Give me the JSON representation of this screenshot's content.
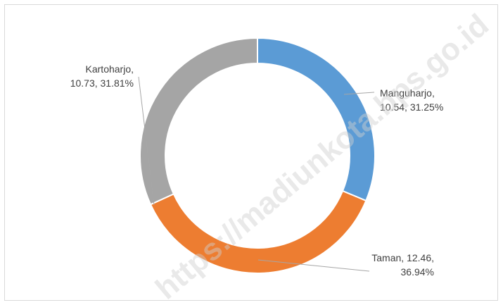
{
  "chart_data": {
    "type": "donut",
    "title": "",
    "slices": [
      {
        "label": "Manguharjo",
        "value": 10.54,
        "percent": 31.25,
        "color": "#5b9bd5",
        "label_lines": [
          "Manguharjo,",
          "10.54, 31.25%"
        ]
      },
      {
        "label": "Taman",
        "value": 12.46,
        "percent": 36.94,
        "color": "#ed7d31",
        "label_lines": [
          "Taman, 12.46,",
          "36.94%"
        ]
      },
      {
        "label": "Kartoharjo",
        "value": 10.73,
        "percent": 31.81,
        "color": "#a5a5a5",
        "label_lines": [
          "Kartoharjo,",
          "10.73, 31.81%"
        ]
      }
    ],
    "legend": "none"
  },
  "watermark": {
    "text": "https://madiunkota.bps.go.id"
  }
}
